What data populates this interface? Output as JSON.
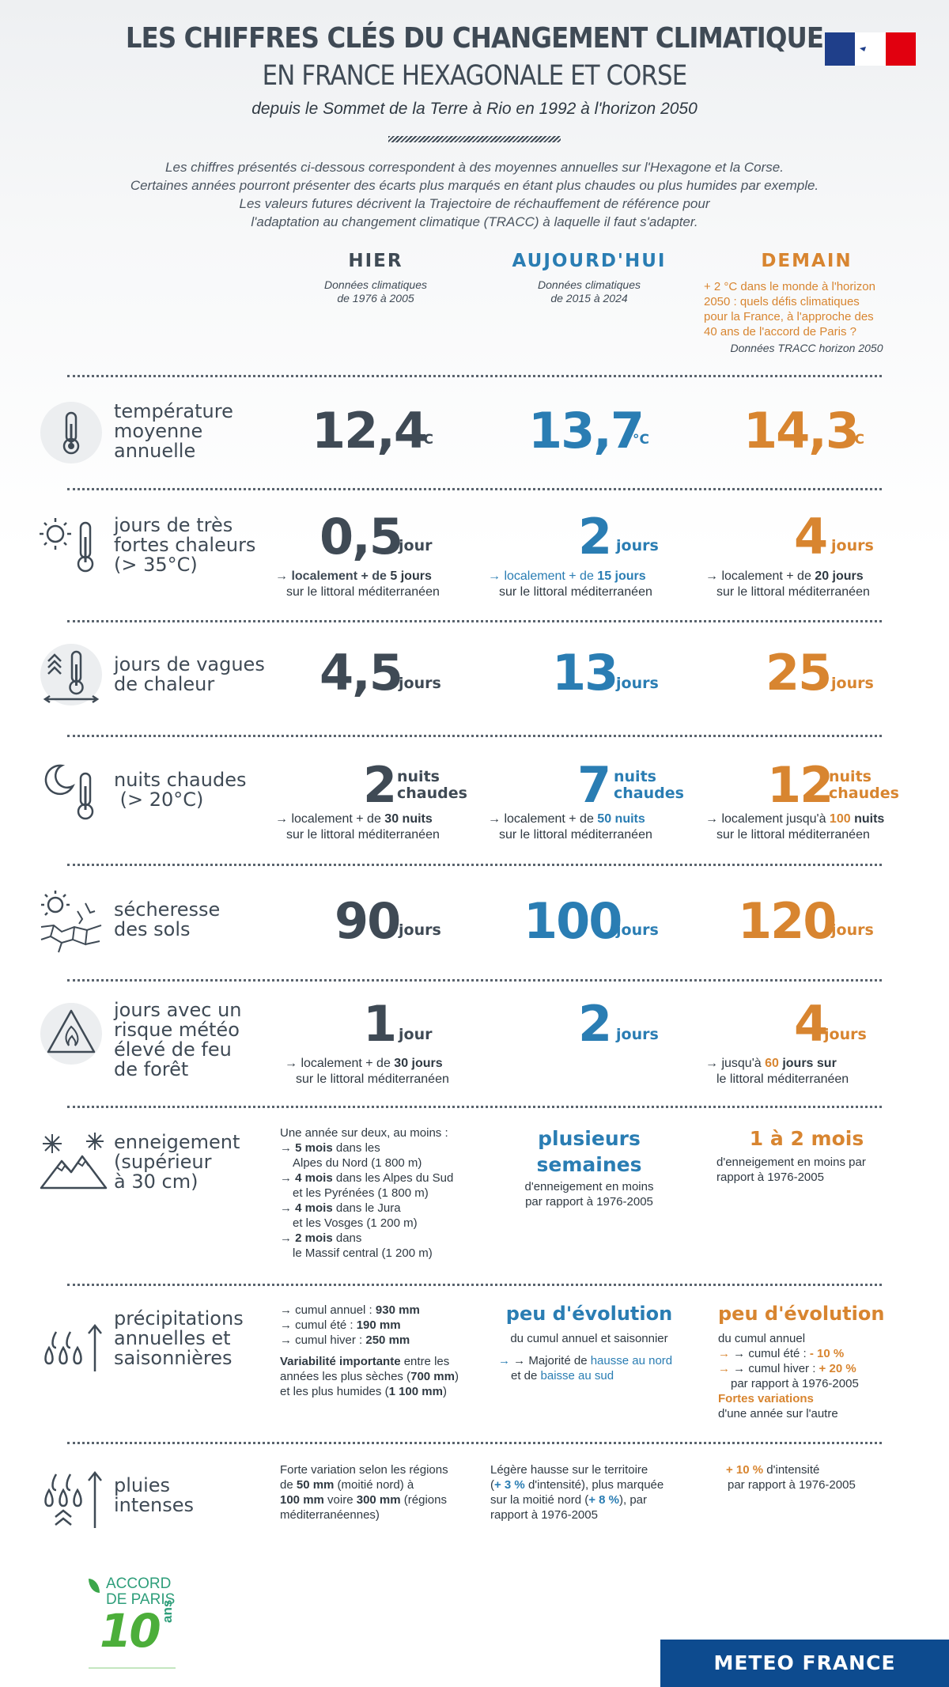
{
  "header": {
    "title_line1": "LES CHIFFRES CLÉS DU CHANGEMENT CLIMATIQUE",
    "title_line2": "EN FRANCE HEXAGONALE ET CORSE",
    "subtitle": "depuis le Sommet de la Terre à Rio en 1992 à l'horizon 2050",
    "intro": [
      "Les chiffres présentés ci-dessous correspondent à des moyennes annuelles sur l'Hexagone et la Corse.",
      "Certaines années pourront présenter des écarts plus marqués en étant plus chaudes ou plus humides par exemple.",
      "Les valeurs futures décrivent la Trajectoire de réchauffement de référence pour",
      "l'adaptation au changement climatique (TRACC) à laquelle il faut s'adapter."
    ]
  },
  "columns": {
    "hier": {
      "title": "HIER",
      "sub1": "Données climatiques",
      "sub2": "de 1976 à 2005"
    },
    "aujourdhui": {
      "title": "AUJOURD'HUI",
      "sub1": "Données climatiques",
      "sub2": "de 2015 à 2024"
    },
    "demain": {
      "title": "DEMAIN",
      "desc": [
        "+ 2 °C dans le monde à l'horizon",
        "2050 : quels défis climatiques",
        "pour la France, à l'approche des",
        "40 ans de l'accord de Paris ?"
      ],
      "sub": "Données TRACC horizon 2050"
    }
  },
  "rows": {
    "temp": {
      "label": [
        "température",
        "moyenne",
        "annuelle"
      ],
      "v1": "12,4",
      "v2": "13,7",
      "v3": "14,3",
      "unit": "°C"
    },
    "heat": {
      "label": [
        "jours de très",
        "fortes chaleurs",
        "(> 35°C)"
      ],
      "v1": "0,5",
      "u1": "jour",
      "v2": "2",
      "u2": "jours",
      "v3": "4",
      "u3": "jours",
      "n1a": "→ localement + de ",
      "n1b": "5 jours",
      "n2a": "→ localement + de ",
      "n2b": "15 jours",
      "n3a": "→ localement + de ",
      "n3b": "20 jours",
      "coast": "sur le littoral méditerranéen"
    },
    "wave": {
      "label": [
        "jours de vagues",
        "de chaleur"
      ],
      "v1": "4,5",
      "v2": "13",
      "v3": "25",
      "unit": "jours"
    },
    "nights": {
      "label": [
        "nuits chaudes",
        " (> 20°C)"
      ],
      "v1": "2",
      "v2": "7",
      "v3": "12",
      "unit_a": "nuits",
      "unit_b": "chaudes",
      "n1a": "→ localement + de ",
      "n1b": "30 nuits",
      "n2a": "→ localement + de ",
      "n2b": "50 nuits",
      "n3a": "→ localement jusqu'à ",
      "n3b": "100",
      "n3c": " nuits",
      "coast": "sur le littoral méditerranéen"
    },
    "drought": {
      "label": [
        "sécheresse",
        "des sols"
      ],
      "v1": "90",
      "v2": "100",
      "v3": "120",
      "unit": "jours"
    },
    "fire": {
      "label": [
        "jours avec un",
        "risque météo",
        "élevé de feu",
        "de forêt"
      ],
      "v1": "1",
      "u1": "jour",
      "v2": "2",
      "u2": "jours",
      "v3": "4",
      "u3": "jours",
      "n1a": "→ localement + de ",
      "n1b": "30 jours",
      "n1c": "sur le littoral méditerranéen",
      "n3a": "→ jusqu'à ",
      "n3b": "60",
      "n3c": " jours sur",
      "n3d": "le littoral méditerranéen"
    },
    "snow": {
      "label": [
        "enneigement",
        "(supérieur",
        "à 30 cm)"
      ],
      "hier_intro": "Une année sur deux, au moins :",
      "hier_items": [
        {
          "b": "5 mois",
          "t": " dans les",
          "t2": "Alpes du Nord (1 800 m)"
        },
        {
          "b": "4 mois",
          "t": " dans les Alpes du Sud",
          "t2": "et les Pyrénées (1 800 m)"
        },
        {
          "b": "4 mois",
          "t": " dans le Jura",
          "t2": "et les Vosges (1 200 m)"
        },
        {
          "b": "2 mois",
          "t": " dans",
          "t2": "le Massif central (1 200 m)"
        }
      ],
      "auj_title1": "plusieurs",
      "auj_title2": "semaines",
      "auj_sub1": "d'enneigement en moins",
      "auj_sub2": "par rapport à 1976-2005",
      "dem_title": "1 à 2 mois",
      "dem_sub1": "d'enneigement en moins par",
      "dem_sub2": "rapport à 1976-2005"
    },
    "precip": {
      "label": [
        "précipitations",
        "annuelles et",
        "saisonnières"
      ],
      "hier_items": [
        {
          "t": "→ cumul annuel : ",
          "b": "930 mm"
        },
        {
          "t": "→ cumul été : ",
          "b": "190 mm"
        },
        {
          "t": "→ cumul hiver : ",
          "b": "250 mm"
        }
      ],
      "hier_var_b": "Variabilité importante",
      "hier_var1": " entre les",
      "hier_var2": "années les plus sèches (",
      "hier_var2b": "700 mm",
      "hier_var2c": ")",
      "hier_var3": "et les plus humides (",
      "hier_var3b": "1 100 mm",
      "hier_var3c": ")",
      "auj_title": "peu d'évolution",
      "auj_sub": "du cumul annuel et saisonnier",
      "auj_n1": "→ Majorité de ",
      "auj_n1b": "hausse au nord",
      "auj_n2": "et de ",
      "auj_n2b": "baisse au sud",
      "dem_title": "peu d'évolution",
      "dem_sub": "du cumul annuel",
      "dem_i1": "→ cumul été : ",
      "dem_i1b": "- 10 %",
      "dem_i2": "→ cumul hiver : ",
      "dem_i2b": "+ 20 %",
      "dem_i3": "par rapport à 1976-2005",
      "dem_fv": "Fortes variations",
      "dem_fv2": "d'une année sur l'autre"
    },
    "rain": {
      "label": [
        "pluies",
        "intenses"
      ],
      "hier1": "Forte variation selon les régions",
      "hier2a": "de ",
      "hier2b": "50 mm",
      "hier2c": " (moitié nord) à",
      "hier3a": "100 mm",
      "hier3b": " voire ",
      "hier3c": "300 mm",
      "hier3d": " (régions",
      "hier4": "méditerranéennes)",
      "auj1": "Légère hausse sur le territoire",
      "auj2a": "(",
      "auj2b": "+ 3 %",
      "auj2c": " d'intensité), plus marquée",
      "auj3a": "sur la moitié nord (",
      "auj3b": "+ 8 %",
      "auj3c": "), par",
      "auj4": "rapport à 1976-2005",
      "dem1a": "+ 10 %",
      "dem1b": " d'intensité",
      "dem2": "par rapport à 1976-2005"
    }
  },
  "footer": {
    "accord1": "ACCORD",
    "accord2": "DE PARIS",
    "num": "10",
    "ans": "ans",
    "brand": "METEO FRANCE"
  },
  "colors": {
    "hier": "#3f4a55",
    "aujourdhui": "#2a7db3",
    "demain": "#d88530",
    "brand": "#0d4b8f"
  }
}
